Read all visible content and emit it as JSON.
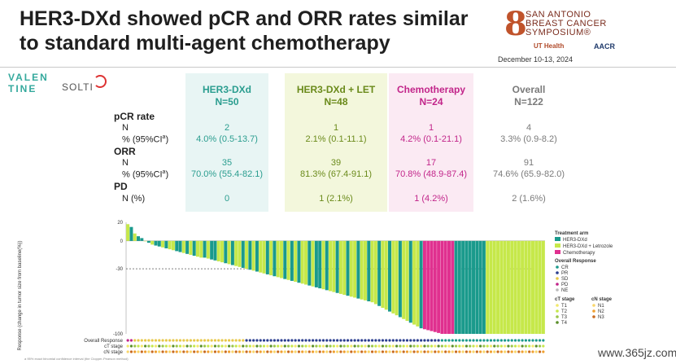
{
  "title": {
    "line1": "HER3-DXd showed pCR and ORR rates similar",
    "line2": "to standard multi-agent chemotherapy"
  },
  "sabcs": {
    "line1": "SAN ANTONIO",
    "line2": "BREAST CANCER",
    "line3": "SYMPOSIUM®",
    "uthealth": "UT Health",
    "aacr": "AACR",
    "date": "December 10-13, 2024"
  },
  "logos": {
    "valentine_top": "VALEN",
    "valentine_bottom": "TINE",
    "solti": "SOLTI"
  },
  "table": {
    "columns": [
      {
        "name": "HER3-DXd",
        "n": "N=50"
      },
      {
        "name": "HER3-DXd + LET",
        "n": "N=48"
      },
      {
        "name": "Chemotherapy",
        "n": "N=24"
      },
      {
        "name": "Overall",
        "n": "N=122"
      }
    ],
    "rows": {
      "pcr_label": "pCR rate",
      "pcr_n_label": "N",
      "pcr_pct_label": "% (95%CI",
      "pcr_pct_sup": "a",
      "pcr_pct_close": ")",
      "orr_label": "ORR",
      "orr_n_label": "N",
      "orr_pct_label": "% (95%CI",
      "orr_pct_sup": "a",
      "orr_pct_close": ")",
      "pd_label": "PD",
      "pd_n_label": "N (%)"
    },
    "pcr_n": [
      "2",
      "1",
      "1",
      "4"
    ],
    "pcr_pct": [
      "4.0% (0.5-13.7)",
      "2.1% (0.1-11.1)",
      "4.2% (0.1-21.1)",
      "3.3% (0.9-8.2)"
    ],
    "orr_n": [
      "35",
      "39",
      "17",
      "91"
    ],
    "orr_pct": [
      "70.0% (55.4-82.1)",
      "81.3% (67.4-91.1)",
      "70.8% (48.9-87.4)",
      "74.6% (65.9-82.0)"
    ],
    "pd_n": [
      "0",
      "1 (2.1%)",
      "1 (4.2%)",
      "2 (1.6%)"
    ]
  },
  "chart_data": {
    "type": "bar",
    "ylabel": "Response (change in tumor size from baseline(%))",
    "ylim": [
      -100,
      20
    ],
    "yticks": [
      "20",
      "0",
      "-30",
      "-100"
    ],
    "reference_line": -30,
    "row_labels": [
      "Overall Response",
      "cT stage",
      "cN stage"
    ],
    "legend": {
      "treatment_title": "Treatment arm",
      "treatment": [
        {
          "name": "HER3-DXd",
          "color": "#1a9a8c"
        },
        {
          "name": "HER3-DXd + Letrozole",
          "color": "#c6e84a"
        },
        {
          "name": "Chemotherapy",
          "color": "#e0308f"
        }
      ],
      "response_title": "Overall Response",
      "response": [
        {
          "name": "CR",
          "color": "#1a9a8c"
        },
        {
          "name": "PR",
          "color": "#2a3d8f"
        },
        {
          "name": "SD",
          "color": "#e8c84a"
        },
        {
          "name": "PD",
          "color": "#c2258a"
        },
        {
          "name": "NE",
          "color": "#bbbbbb"
        }
      ],
      "ct_title": "cT stage",
      "ct": [
        "T1",
        "T2",
        "T3",
        "T4"
      ],
      "cn_title": "cN stage",
      "cn": [
        "N1",
        "N2",
        "N3"
      ]
    },
    "series_order_note": "",
    "values": [
      18,
      15,
      8,
      5,
      3,
      0,
      -2,
      -4,
      -5,
      -6,
      -7,
      -8,
      -9,
      -10,
      -11,
      -12,
      -13,
      -14,
      -15,
      -16,
      -17,
      -18,
      -18,
      -19,
      -20,
      -21,
      -22,
      -23,
      -24,
      -25,
      -26,
      -27,
      -28,
      -29,
      -30,
      -31,
      -32,
      -33,
      -34,
      -35,
      -36,
      -37,
      -38,
      -39,
      -40,
      -41,
      -42,
      -43,
      -44,
      -45,
      -46,
      -47,
      -48,
      -49,
      -50,
      -51,
      -52,
      -53,
      -54,
      -55,
      -56,
      -57,
      -58,
      -59,
      -60,
      -61,
      -62,
      -63,
      -64,
      -65,
      -66,
      -68,
      -70,
      -72,
      -74,
      -76,
      -78,
      -80,
      -82,
      -84,
      -86,
      -88,
      -90,
      -92,
      -94,
      -95,
      -96,
      -97,
      -98,
      -99,
      -100,
      -100,
      -100,
      -100,
      -100,
      -100,
      -100,
      -100,
      -100,
      -100,
      -100,
      -100,
      -100,
      -100,
      -100,
      -100,
      -100,
      -100,
      -100,
      -100,
      -100,
      -100,
      -100,
      -100,
      -100,
      -100,
      -100,
      -100,
      -100,
      -100
    ],
    "arms": [
      1,
      0,
      1,
      0,
      0,
      1,
      0,
      1,
      0,
      0,
      1,
      0,
      1,
      1,
      0,
      0,
      1,
      0,
      1,
      0,
      1,
      1,
      0,
      1,
      0,
      0,
      1,
      1,
      0,
      1,
      0,
      1,
      1,
      0,
      1,
      0,
      1,
      0,
      1,
      1,
      0,
      1,
      0,
      1,
      1,
      0,
      1,
      0,
      1,
      0,
      1,
      1,
      0,
      1,
      0,
      0,
      1,
      0,
      1,
      1,
      0,
      1,
      1,
      0,
      1,
      1,
      0,
      1,
      1,
      0,
      1,
      1,
      0,
      1,
      1,
      0,
      1,
      1,
      0,
      1,
      1,
      0,
      1,
      1,
      0,
      2,
      2,
      2,
      2,
      2,
      2,
      2,
      2,
      2,
      0,
      0,
      0,
      0,
      0,
      0,
      0,
      0,
      0,
      1,
      1,
      1,
      1,
      1,
      1,
      1,
      1,
      1,
      1,
      1,
      1,
      1,
      1,
      1,
      1,
      1,
      1
    ]
  },
  "watermark": "www.365jz.com",
  "footnote": "a 95% exact binomial confidence interval (the Clopper-Pearson method)"
}
